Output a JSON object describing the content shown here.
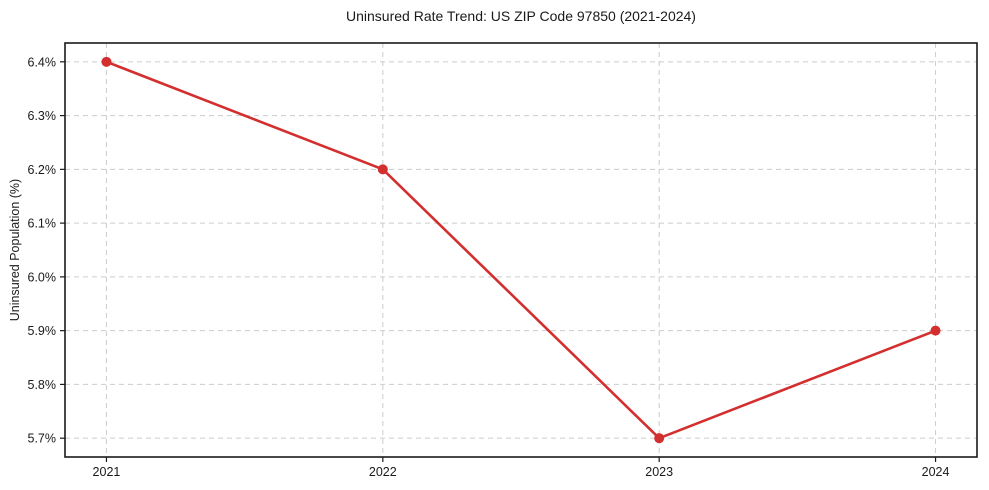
{
  "chart_data": {
    "type": "line",
    "title": "Uninsured Rate Trend: US ZIP Code 97850 (2021-2024)",
    "xlabel": "",
    "ylabel": "Uninsured Population (%)",
    "x": [
      2021,
      2022,
      2023,
      2024
    ],
    "x_tick_labels": [
      "2021",
      "2022",
      "2023",
      "2024"
    ],
    "values": [
      6.4,
      6.2,
      5.7,
      5.9
    ],
    "y_ticks": [
      5.7,
      5.8,
      5.9,
      6.0,
      6.1,
      6.2,
      6.3,
      6.4
    ],
    "y_tick_labels": [
      "5.7%",
      "5.8%",
      "5.9%",
      "6.0%",
      "6.1%",
      "6.2%",
      "6.3%",
      "6.4%"
    ],
    "xlim": [
      2020.85,
      2024.15
    ],
    "ylim": [
      5.665,
      6.435
    ],
    "grid": true,
    "legend": "none",
    "marker": "circle",
    "colors": {
      "line": "#d32f2f",
      "marker": "#d32f2f",
      "grid": "#cccccc",
      "axis": "#1a1a1a",
      "text": "#1a1a1a",
      "background": "#ffffff"
    }
  }
}
